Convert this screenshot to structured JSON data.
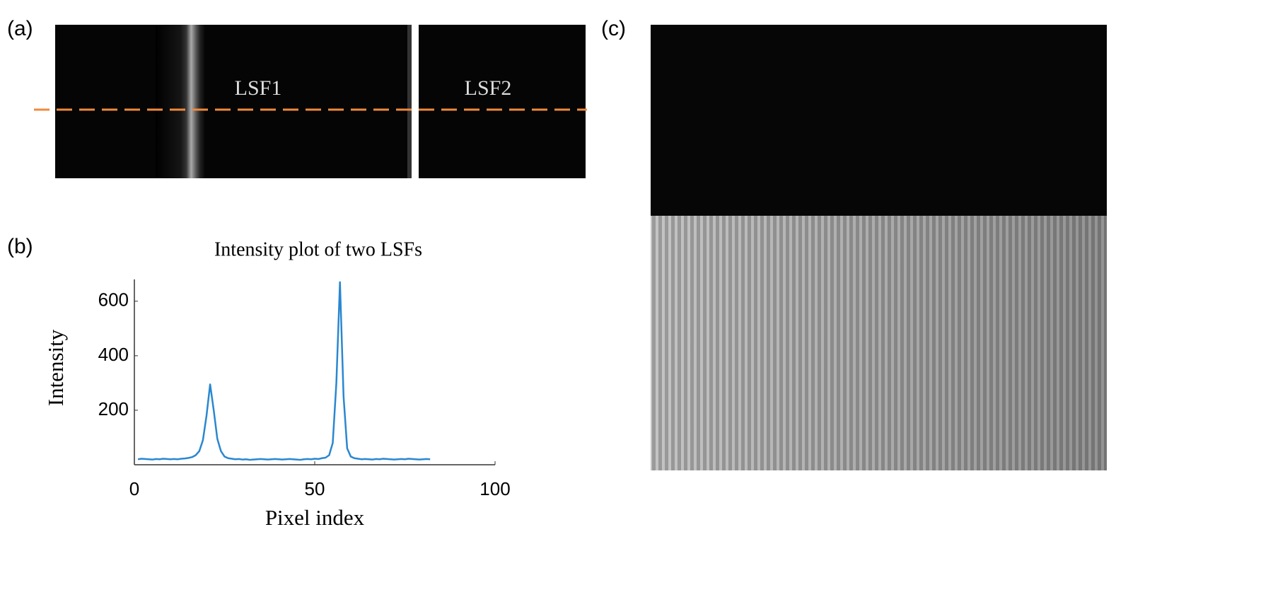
{
  "panel_labels": [
    "(a)",
    "(b)",
    "(c)"
  ],
  "image_labels": [
    "LSF1",
    "LSF2"
  ],
  "chart_data": {
    "type": "line",
    "title": "Intensity plot of two LSFs",
    "x_label": "Pixel index",
    "y_label": "Intensity",
    "color": "#2a87d0",
    "x": [
      1,
      2,
      3,
      4,
      5,
      6,
      7,
      8,
      9,
      10,
      11,
      12,
      13,
      14,
      15,
      16,
      17,
      18,
      19,
      20,
      21,
      22,
      23,
      24,
      25,
      26,
      27,
      28,
      29,
      30,
      31,
      32,
      33,
      34,
      35,
      36,
      37,
      38,
      39,
      40,
      41,
      42,
      43,
      44,
      45,
      46,
      47,
      48,
      49,
      50,
      51,
      52,
      53,
      54,
      55,
      56,
      57,
      58,
      59,
      60,
      61,
      62,
      63,
      64,
      65,
      66,
      67,
      68,
      69,
      70,
      71,
      72,
      73,
      74,
      75,
      76,
      77,
      78,
      79,
      80,
      81,
      82
    ],
    "values": [
      20,
      22,
      21,
      20,
      19,
      21,
      20,
      22,
      21,
      20,
      21,
      20,
      22,
      23,
      25,
      28,
      35,
      50,
      90,
      180,
      295,
      200,
      95,
      50,
      30,
      24,
      22,
      20,
      21,
      19,
      20,
      18,
      19,
      20,
      21,
      20,
      19,
      20,
      21,
      20,
      19,
      20,
      21,
      20,
      19,
      18,
      20,
      21,
      20,
      22,
      21,
      24,
      26,
      35,
      80,
      300,
      670,
      250,
      60,
      30,
      24,
      22,
      20,
      21,
      20,
      19,
      21,
      20,
      22,
      21,
      20,
      19,
      20,
      21,
      20,
      22,
      21,
      20,
      19,
      20,
      21,
      20
    ],
    "xlim": [
      0,
      100
    ],
    "xticks": [
      0,
      50,
      100
    ],
    "ylim": [
      0,
      680
    ],
    "yticks": [
      200,
      400,
      600
    ]
  }
}
